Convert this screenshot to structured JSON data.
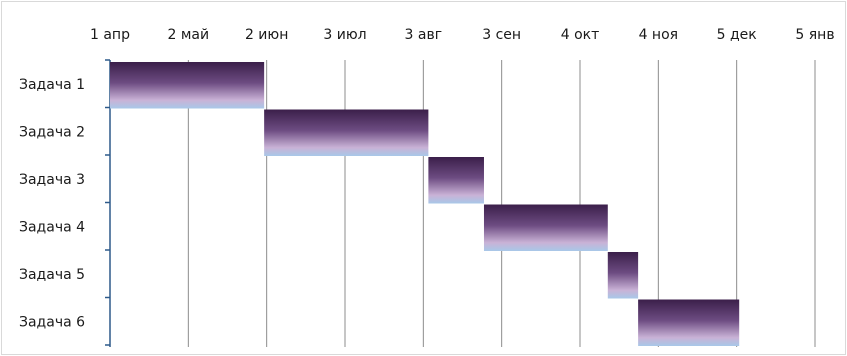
{
  "chart_data": {
    "type": "bar",
    "orientation": "horizontal-gantt",
    "x_axis_type": "date",
    "x_axis_position": "top",
    "xlim": [
      "2013-04-01",
      "2014-01-05"
    ],
    "x_ticks": [
      {
        "date": "2013-04-01",
        "label": "1 апр"
      },
      {
        "date": "2013-05-02",
        "label": "2 май"
      },
      {
        "date": "2013-06-02",
        "label": "2 июн"
      },
      {
        "date": "2013-07-03",
        "label": "3 июл"
      },
      {
        "date": "2013-08-03",
        "label": "3 авг"
      },
      {
        "date": "2013-09-03",
        "label": "3 сен"
      },
      {
        "date": "2013-10-04",
        "label": "4 окт"
      },
      {
        "date": "2013-11-04",
        "label": "4 ноя"
      },
      {
        "date": "2013-12-05",
        "label": "5 дек"
      },
      {
        "date": "2014-01-05",
        "label": "5 янв"
      }
    ],
    "categories": [
      "Задача 1",
      "Задача 2",
      "Задача 3",
      "Задача 4",
      "Задача 5",
      "Задача 6"
    ],
    "series": [
      {
        "start": [
          "2013-04-01",
          "2013-06-01",
          "2013-08-05",
          "2013-08-27",
          "2013-10-15",
          "2013-10-27"
        ],
        "end": [
          "2013-06-01",
          "2013-08-05",
          "2013-08-27",
          "2013-10-15",
          "2013-10-27",
          "2013-12-06"
        ]
      }
    ],
    "grid": true,
    "legend": "none",
    "colors": {
      "bar_top": "#3b1f4a",
      "bar_mid": "#6d4c82",
      "bar_light": "#c9b2d6",
      "bar_bottom": "#a8c8e8",
      "gridline": "#8c8c8c",
      "axis": "#2e5a8a"
    }
  }
}
